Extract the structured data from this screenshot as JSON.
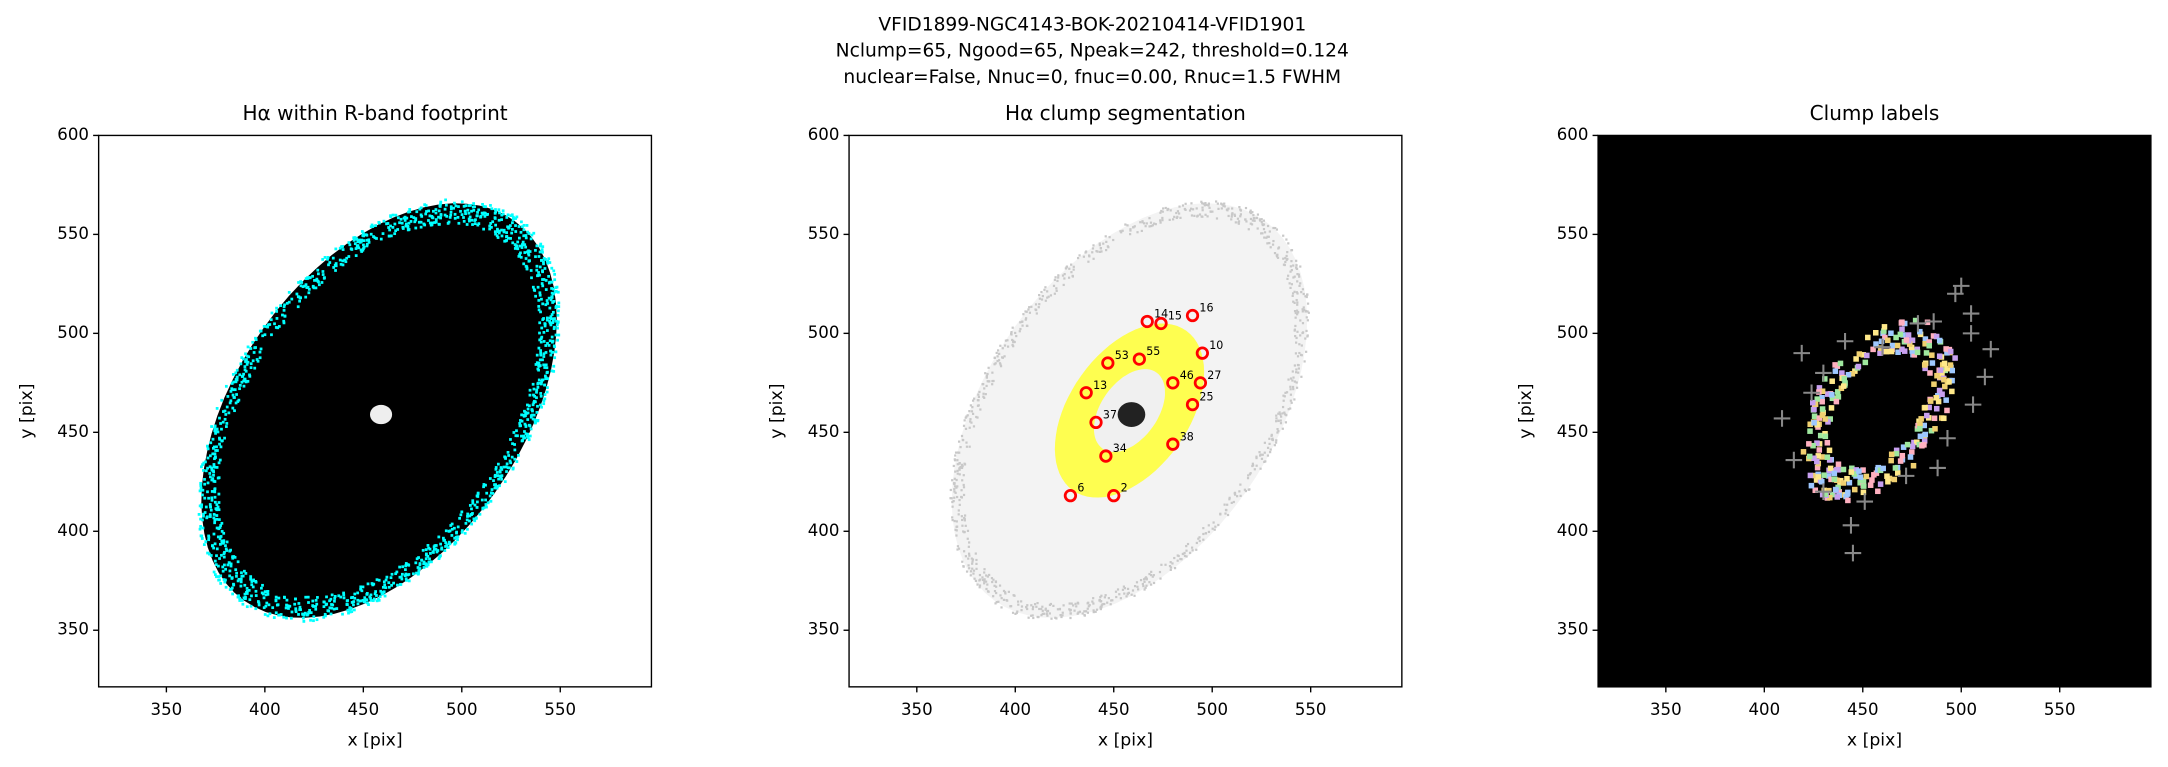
{
  "figure": {
    "title": [
      "VFID1899-NGC4143-BOK-20210414-VFID1901",
      "Nclump=65, Ngood=65, Npeak=242, threshold=0.124",
      "nuclear=False, Nnuc=0, fnuc=0.00, Rnuc=1.5 FWHM"
    ]
  },
  "chart_data": [
    {
      "type": "image",
      "title": "Hα within R-band footprint",
      "xlabel": "x [pix]",
      "ylabel": "y [pix]",
      "xlim": [
        315.6,
        596.3
      ],
      "ylim": [
        321.4,
        600
      ],
      "xticks": [
        350,
        400,
        450,
        500,
        550
      ],
      "yticks": [
        350,
        400,
        450,
        500,
        550,
        600
      ]
    },
    {
      "type": "image",
      "title": "Hα clump segmentation",
      "xlabel": "x [pix]",
      "ylabel": "y [pix]",
      "xlim": [
        315.6,
        596.3
      ],
      "ylim": [
        321.4,
        600
      ],
      "xticks": [
        350,
        400,
        450,
        500,
        550
      ],
      "yticks": [
        350,
        400,
        450,
        500,
        550,
        600
      ],
      "clumps": {
        "color": "#ff0000",
        "x": [
          467,
          474,
          490,
          495,
          447,
          463,
          480,
          494,
          490,
          441,
          480,
          446,
          450,
          428,
          436
        ],
        "y": [
          506,
          505,
          509,
          490,
          485,
          487,
          475,
          475,
          464,
          455,
          444,
          438,
          418,
          418,
          470
        ],
        "labels": [
          14,
          15,
          16,
          10,
          53,
          55,
          46,
          27,
          25,
          37,
          38,
          34,
          2,
          6,
          13
        ]
      }
    },
    {
      "type": "image",
      "title": "Clump labels",
      "xlabel": "x [pix]",
      "ylabel": "y [pix]",
      "xlim": [
        315.6,
        596.3
      ],
      "ylim": [
        321.4,
        600
      ],
      "xticks": [
        350,
        400,
        450,
        500,
        550
      ],
      "yticks": [
        350,
        400,
        450,
        500,
        550,
        600
      ],
      "markers": {
        "color": "#888888",
        "x": [
          419,
          441,
          460,
          478,
          497,
          500,
          505,
          515,
          512,
          506,
          488,
          472,
          451,
          430,
          415,
          409,
          424,
          444,
          445,
          430,
          486,
          493,
          505
        ],
        "y": [
          490,
          496,
          493,
          505,
          520,
          524,
          510,
          492,
          478,
          464,
          432,
          428,
          415,
          420,
          436,
          457,
          470,
          403,
          389,
          480,
          506,
          447,
          500
        ]
      }
    }
  ]
}
